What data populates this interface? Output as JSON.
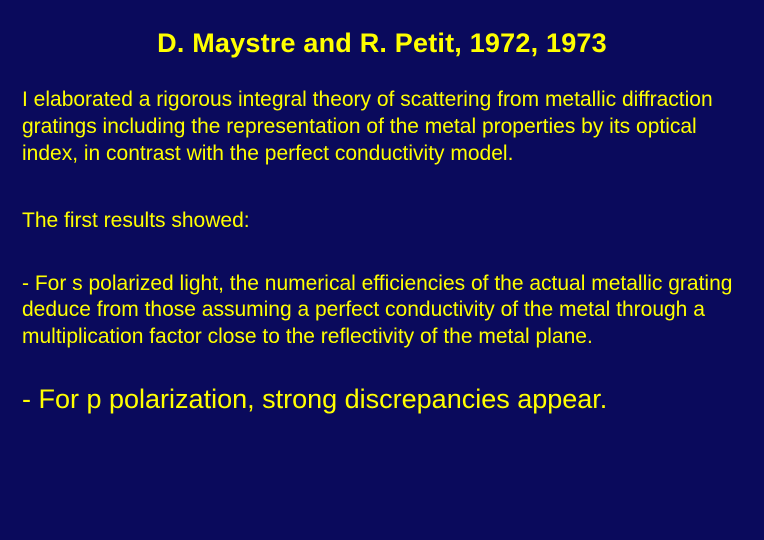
{
  "slide": {
    "background_color": "#0a0a5c",
    "text_color": "#ffff00",
    "title_fontsize": 27,
    "body_fontsize": 21,
    "emphasis_fontsize": 27,
    "font_family": "Arial",
    "title": "D. Maystre and R. Petit, 1972, 1973",
    "paragraphs": {
      "p1": "I elaborated a rigorous integral theory of scattering from metallic diffraction gratings including the representation of the metal properties by its optical index, in contrast with the perfect conductivity model.",
      "p2": "The first results showed:",
      "p3": "- For s polarized light, the numerical efficiencies of the actual metallic grating deduce from those assuming a perfect conductivity of the metal through a multiplication factor close to the reflectivity of the metal plane.",
      "p4": "- For p polarization, strong discrepancies appear."
    }
  }
}
